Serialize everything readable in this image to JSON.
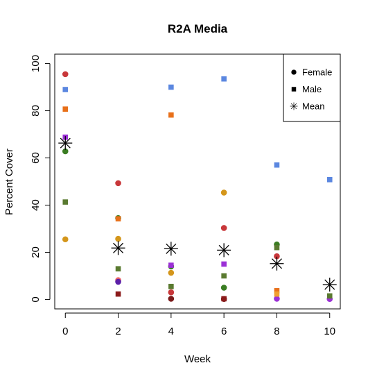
{
  "chart_data": {
    "type": "scatter",
    "title": "R2A Media",
    "xlabel": "Week",
    "ylabel": "Percent Cover",
    "xlim": [
      -0.4,
      10.4
    ],
    "ylim": [
      -4,
      104
    ],
    "x_ticks": [
      0,
      2,
      4,
      6,
      8,
      10
    ],
    "y_ticks": [
      0,
      20,
      40,
      60,
      80,
      100
    ],
    "grid": false,
    "legend_position": "top-right",
    "legend": [
      {
        "label": "Female",
        "marker": "circle"
      },
      {
        "label": "Male",
        "marker": "square"
      },
      {
        "label": "Mean",
        "marker": "asterisk"
      }
    ],
    "series": [
      {
        "marker": "circle",
        "color": "#c8373a",
        "points": [
          [
            0,
            95.5
          ],
          [
            2,
            49.3
          ],
          [
            4,
            3
          ],
          [
            6,
            30.3
          ],
          [
            8,
            18.3
          ]
        ]
      },
      {
        "marker": "circle",
        "color": "#3a7d22",
        "points": [
          [
            0,
            62.8
          ],
          [
            2,
            34.5
          ],
          [
            4,
            14
          ],
          [
            6,
            5
          ],
          [
            8,
            23.3
          ]
        ]
      },
      {
        "marker": "circle",
        "color": "#d4961b",
        "points": [
          [
            0,
            25.5
          ],
          [
            2,
            25.7
          ],
          [
            4,
            11.3
          ],
          [
            6,
            45.3
          ]
        ]
      },
      {
        "marker": "circle",
        "color": "#f06b6b",
        "points": [
          [
            2,
            8.2
          ]
        ]
      },
      {
        "marker": "circle",
        "color": "#7a1a1a",
        "points": [
          [
            4,
            0.3
          ],
          [
            6,
            0.2
          ]
        ]
      },
      {
        "marker": "circle",
        "color": "#5b1fa8",
        "points": [
          [
            2,
            7.5
          ]
        ]
      },
      {
        "marker": "circle",
        "color": "#9b30d6",
        "points": [
          [
            8,
            0.3
          ],
          [
            10,
            0.2
          ]
        ]
      },
      {
        "marker": "square",
        "color": "#5b87e0",
        "points": [
          [
            0,
            89
          ],
          [
            4,
            90
          ],
          [
            6,
            93.5
          ],
          [
            8,
            57
          ],
          [
            10,
            50.8
          ]
        ]
      },
      {
        "marker": "square",
        "color": "#e8701a",
        "points": [
          [
            0,
            80.7
          ],
          [
            2,
            34.2
          ],
          [
            4,
            78.2
          ],
          [
            8,
            3.7
          ]
        ]
      },
      {
        "marker": "square",
        "color": "#5a7a30",
        "points": [
          [
            0,
            41.3
          ],
          [
            2,
            13
          ],
          [
            4,
            5.5
          ],
          [
            6,
            10
          ],
          [
            8,
            22
          ],
          [
            10,
            1.5
          ]
        ]
      },
      {
        "marker": "square",
        "color": "#9b30d6",
        "points": [
          [
            0,
            68.8
          ],
          [
            4,
            14.5
          ],
          [
            6,
            15
          ]
        ]
      },
      {
        "marker": "square",
        "color": "#8b1a1a",
        "points": [
          [
            2,
            2.3
          ],
          [
            6,
            0.3
          ]
        ]
      },
      {
        "marker": "square",
        "color": "#f0a030",
        "points": [
          [
            8,
            2.3
          ]
        ]
      },
      {
        "marker": "asterisk",
        "color": "#000000",
        "points": [
          [
            0,
            66.3
          ],
          [
            2,
            21.8
          ],
          [
            4,
            21.5
          ],
          [
            6,
            20.9
          ],
          [
            8,
            15.2
          ],
          [
            10,
            6.3
          ]
        ]
      }
    ]
  }
}
